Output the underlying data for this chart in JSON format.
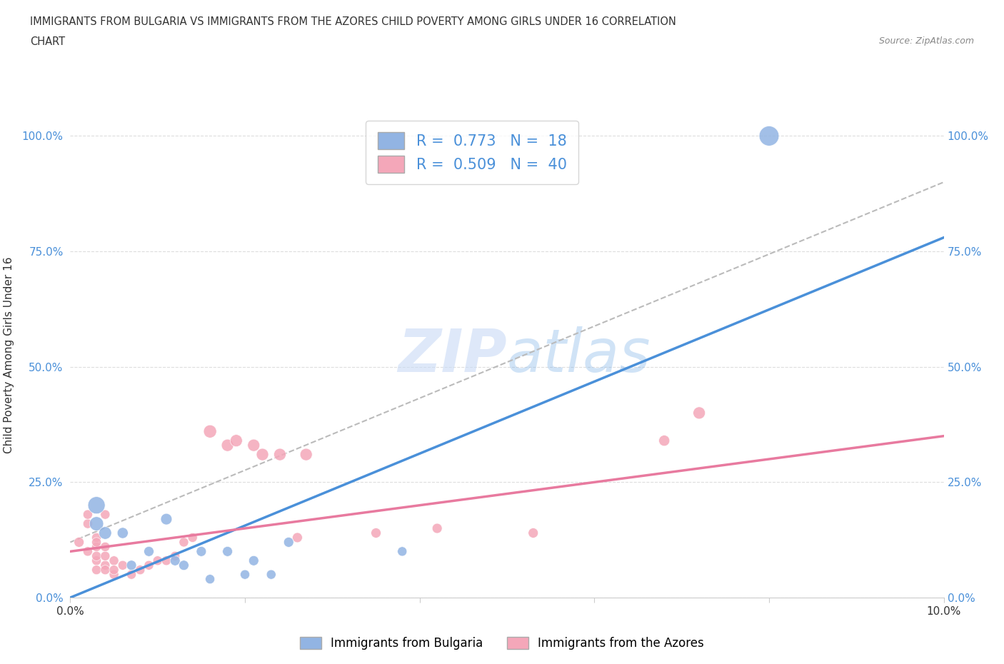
{
  "title_line1": "IMMIGRANTS FROM BULGARIA VS IMMIGRANTS FROM THE AZORES CHILD POVERTY AMONG GIRLS UNDER 16 CORRELATION",
  "title_line2": "CHART",
  "source": "Source: ZipAtlas.com",
  "ylabel": "Child Poverty Among Girls Under 16",
  "xlim": [
    0.0,
    0.1
  ],
  "ylim": [
    0.0,
    1.05
  ],
  "xticks": [
    0.0,
    0.02,
    0.04,
    0.06,
    0.08,
    0.1
  ],
  "xtick_labels": [
    "0.0%",
    "",
    "",
    "",
    "",
    "10.0%"
  ],
  "ytick_labels": [
    "0.0%",
    "25.0%",
    "50.0%",
    "75.0%",
    "100.0%"
  ],
  "yticks": [
    0.0,
    0.25,
    0.5,
    0.75,
    1.0
  ],
  "R_bulgaria": 0.773,
  "N_bulgaria": 18,
  "R_azores": 0.509,
  "N_azores": 40,
  "bulgaria_color": "#92b4e3",
  "azores_color": "#f4a7b9",
  "bulgaria_line_color": "#4a90d9",
  "azores_line_color": "#e87a9f",
  "watermark_color": "#c8daf5",
  "legend_label_bulgaria": "Immigrants from Bulgaria",
  "legend_label_azores": "Immigrants from the Azores",
  "bulgaria_scatter": [
    [
      0.003,
      0.2
    ],
    [
      0.003,
      0.16
    ],
    [
      0.004,
      0.14
    ],
    [
      0.006,
      0.14
    ],
    [
      0.007,
      0.07
    ],
    [
      0.009,
      0.1
    ],
    [
      0.011,
      0.17
    ],
    [
      0.012,
      0.08
    ],
    [
      0.013,
      0.07
    ],
    [
      0.015,
      0.1
    ],
    [
      0.016,
      0.04
    ],
    [
      0.018,
      0.1
    ],
    [
      0.02,
      0.05
    ],
    [
      0.021,
      0.08
    ],
    [
      0.023,
      0.05
    ],
    [
      0.025,
      0.12
    ],
    [
      0.038,
      0.1
    ],
    [
      0.08,
      1.0
    ]
  ],
  "bulgaria_sizes": [
    300,
    200,
    160,
    120,
    100,
    100,
    130,
    100,
    100,
    100,
    90,
    100,
    90,
    100,
    90,
    100,
    90,
    400
  ],
  "azores_scatter": [
    [
      0.001,
      0.12
    ],
    [
      0.002,
      0.1
    ],
    [
      0.002,
      0.16
    ],
    [
      0.002,
      0.18
    ],
    [
      0.003,
      0.08
    ],
    [
      0.003,
      0.11
    ],
    [
      0.003,
      0.13
    ],
    [
      0.003,
      0.06
    ],
    [
      0.003,
      0.09
    ],
    [
      0.003,
      0.12
    ],
    [
      0.004,
      0.07
    ],
    [
      0.004,
      0.18
    ],
    [
      0.004,
      0.06
    ],
    [
      0.004,
      0.09
    ],
    [
      0.004,
      0.11
    ],
    [
      0.005,
      0.05
    ],
    [
      0.005,
      0.08
    ],
    [
      0.005,
      0.06
    ],
    [
      0.006,
      0.07
    ],
    [
      0.007,
      0.05
    ],
    [
      0.008,
      0.06
    ],
    [
      0.009,
      0.07
    ],
    [
      0.01,
      0.08
    ],
    [
      0.011,
      0.08
    ],
    [
      0.012,
      0.09
    ],
    [
      0.013,
      0.12
    ],
    [
      0.014,
      0.13
    ],
    [
      0.016,
      0.36
    ],
    [
      0.018,
      0.33
    ],
    [
      0.019,
      0.34
    ],
    [
      0.021,
      0.33
    ],
    [
      0.022,
      0.31
    ],
    [
      0.024,
      0.31
    ],
    [
      0.026,
      0.13
    ],
    [
      0.027,
      0.31
    ],
    [
      0.035,
      0.14
    ],
    [
      0.042,
      0.15
    ],
    [
      0.053,
      0.14
    ],
    [
      0.068,
      0.34
    ],
    [
      0.072,
      0.4
    ]
  ],
  "azores_sizes": [
    100,
    90,
    90,
    90,
    90,
    90,
    90,
    90,
    90,
    90,
    90,
    90,
    90,
    90,
    90,
    90,
    90,
    90,
    90,
    90,
    90,
    90,
    90,
    90,
    90,
    90,
    90,
    170,
    150,
    150,
    150,
    150,
    150,
    100,
    150,
    100,
    100,
    100,
    120,
    150
  ],
  "bulgaria_trendline": [
    0.0,
    0.0,
    0.1,
    0.78
  ],
  "azores_trendline": [
    0.0,
    0.1,
    0.1,
    0.35
  ],
  "gray_trendline": [
    0.0,
    0.12,
    0.1,
    0.9
  ]
}
